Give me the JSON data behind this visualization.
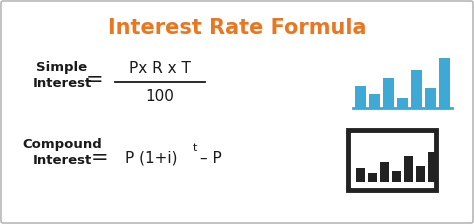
{
  "title": "Interest Rate Formula",
  "title_color": "#E87722",
  "title_fontsize": 15,
  "bg_color": "#FFFFFF",
  "border_color": "#AAAAAA",
  "text_color": "#1a1a1a",
  "simple_label": "Simple\nInterest",
  "simple_eq": "=",
  "simple_numerator": "Px R x T",
  "simple_denominator": "100",
  "compound_label": "Compound\nInterest",
  "compound_eq": "=",
  "compound_formula": "P (1+i)",
  "compound_exp": "t",
  "compound_rest": "– P",
  "bar_color_simple": "#3fa9d5",
  "bar_color_compound": "#222222",
  "label_fontsize": 9.5,
  "formula_fontsize": 11
}
